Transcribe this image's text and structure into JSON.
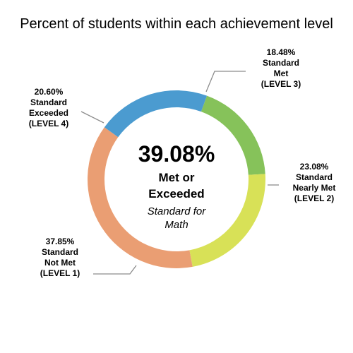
{
  "chart_data": {
    "type": "pie",
    "title": "Percent of students within each achievement level",
    "slices": [
      {
        "label": [
          "18.48%",
          "Standard",
          "Met",
          "(LEVEL 3)"
        ],
        "value": 18.48,
        "color": "#86c25a"
      },
      {
        "label": [
          "23.08%",
          "Standard",
          "Nearly Met",
          "(LEVEL 2)"
        ],
        "value": 23.08,
        "color": "#d8e157"
      },
      {
        "label": [
          "37.85%",
          "Standard",
          "Not Met",
          "(LEVEL 1)"
        ],
        "value": 37.85,
        "color": "#ea9e73"
      },
      {
        "label": [
          "20.60%",
          "Standard",
          "Exceeded",
          "(LEVEL 4)"
        ],
        "value": 20.6,
        "color": "#4b9bd0"
      }
    ],
    "center": {
      "value": "39.08%",
      "line1": "Met or",
      "line2": "Exceeded",
      "line3": "Standard for",
      "line4": "Math"
    }
  }
}
